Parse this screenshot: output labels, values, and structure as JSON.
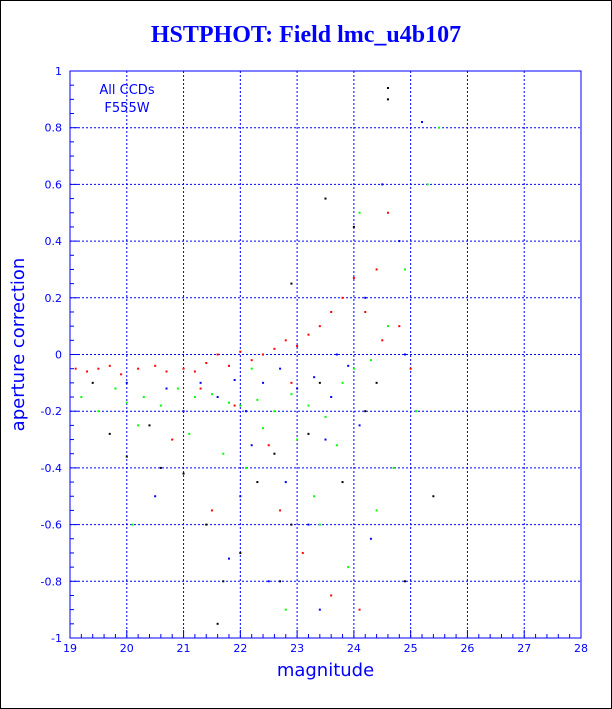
{
  "chart_data": {
    "type": "scatter",
    "title": "HSTPHOT: Field lmc_u4b107",
    "xlabel": "magnitude",
    "ylabel": "aperture correction",
    "xlim": [
      19,
      28
    ],
    "ylim": [
      -1,
      1
    ],
    "xticks": [
      "19",
      "20",
      "21",
      "22",
      "23",
      "24",
      "25",
      "26",
      "27",
      "28"
    ],
    "yticks": [
      "-1",
      "-0.8",
      "-0.6",
      "-0.4",
      "-0.2",
      "0",
      "0.2",
      "0.4",
      "0.6",
      "0.8",
      "1"
    ],
    "grid": true,
    "annotations": [
      "All CCDs",
      "F555W"
    ],
    "colors": {
      "axis": "#0000ff",
      "red": "#ff0000",
      "green": "#00ff00",
      "blue": "#0000ff",
      "black": "#000000"
    },
    "series": [
      {
        "color": "red",
        "points": [
          [
            19.1,
            -0.05
          ],
          [
            19.3,
            -0.06
          ],
          [
            19.5,
            -0.05
          ],
          [
            19.7,
            -0.04
          ],
          [
            19.9,
            -0.07
          ],
          [
            20.2,
            -0.05
          ],
          [
            20.5,
            -0.04
          ],
          [
            20.7,
            -0.06
          ],
          [
            21.0,
            -0.05
          ],
          [
            21.2,
            -0.06
          ],
          [
            21.4,
            -0.03
          ],
          [
            21.6,
            0.0
          ],
          [
            21.8,
            -0.04
          ],
          [
            22.0,
            0.01
          ],
          [
            22.2,
            -0.02
          ],
          [
            22.4,
            0.0
          ],
          [
            22.6,
            0.02
          ],
          [
            22.8,
            0.05
          ],
          [
            23.0,
            0.03
          ],
          [
            23.2,
            0.07
          ],
          [
            23.4,
            0.1
          ],
          [
            23.6,
            0.15
          ],
          [
            23.8,
            0.2
          ],
          [
            24.0,
            0.27
          ],
          [
            24.2,
            0.15
          ],
          [
            24.4,
            0.3
          ],
          [
            24.6,
            0.5
          ],
          [
            24.8,
            0.1
          ],
          [
            25.0,
            -0.05
          ],
          [
            21.3,
            -0.12
          ],
          [
            21.9,
            -0.18
          ],
          [
            22.5,
            -0.32
          ],
          [
            22.7,
            -0.55
          ],
          [
            23.1,
            -0.7
          ],
          [
            23.6,
            -0.85
          ],
          [
            24.1,
            -0.9
          ],
          [
            22.9,
            -0.1
          ],
          [
            21.5,
            -0.55
          ],
          [
            20.8,
            -0.3
          ],
          [
            24.5,
            0.05
          ]
        ]
      },
      {
        "color": "green",
        "points": [
          [
            19.2,
            -0.15
          ],
          [
            19.5,
            -0.2
          ],
          [
            19.8,
            -0.12
          ],
          [
            20.0,
            -0.17
          ],
          [
            20.3,
            -0.15
          ],
          [
            20.6,
            -0.18
          ],
          [
            20.9,
            -0.12
          ],
          [
            21.2,
            -0.15
          ],
          [
            21.5,
            -0.14
          ],
          [
            21.8,
            -0.17
          ],
          [
            22.0,
            -0.18
          ],
          [
            22.3,
            -0.16
          ],
          [
            22.6,
            -0.2
          ],
          [
            22.9,
            -0.14
          ],
          [
            23.2,
            -0.18
          ],
          [
            23.5,
            -0.22
          ],
          [
            23.8,
            -0.1
          ],
          [
            24.0,
            -0.05
          ],
          [
            24.3,
            -0.02
          ],
          [
            24.6,
            0.1
          ],
          [
            24.9,
            0.3
          ],
          [
            25.3,
            0.6
          ],
          [
            25.5,
            0.8
          ],
          [
            24.1,
            0.5
          ],
          [
            23.0,
            -0.3
          ],
          [
            22.1,
            -0.4
          ],
          [
            21.7,
            -0.35
          ],
          [
            20.2,
            -0.25
          ],
          [
            23.4,
            -0.6
          ],
          [
            24.7,
            -0.4
          ],
          [
            22.8,
            -0.9
          ],
          [
            23.3,
            -0.5
          ],
          [
            21.1,
            -0.28
          ],
          [
            22.4,
            -0.26
          ],
          [
            23.7,
            -0.32
          ],
          [
            25.1,
            -0.2
          ],
          [
            24.4,
            -0.55
          ],
          [
            20.1,
            -0.6
          ],
          [
            23.9,
            -0.75
          ],
          [
            22.2,
            -0.05
          ]
        ]
      },
      {
        "color": "blue",
        "points": [
          [
            20.0,
            -0.1
          ],
          [
            20.7,
            -0.12
          ],
          [
            21.3,
            -0.1
          ],
          [
            21.6,
            -0.15
          ],
          [
            21.9,
            -0.09
          ],
          [
            22.1,
            -0.2
          ],
          [
            22.4,
            -0.1
          ],
          [
            22.7,
            -0.05
          ],
          [
            23.0,
            -0.12
          ],
          [
            23.3,
            -0.08
          ],
          [
            23.6,
            -0.15
          ],
          [
            23.9,
            -0.04
          ],
          [
            24.2,
            0.2
          ],
          [
            24.5,
            0.6
          ],
          [
            24.8,
            0.4
          ],
          [
            25.2,
            0.82
          ],
          [
            22.2,
            -0.32
          ],
          [
            22.8,
            -0.45
          ],
          [
            23.2,
            -0.6
          ],
          [
            21.8,
            -0.72
          ],
          [
            23.5,
            -0.3
          ],
          [
            24.1,
            -0.25
          ],
          [
            22.5,
            -0.8
          ],
          [
            21.0,
            -0.2
          ],
          [
            24.9,
            0.0
          ],
          [
            20.5,
            -0.5
          ],
          [
            23.7,
            0.0
          ],
          [
            22.0,
            -0.5
          ],
          [
            24.3,
            -0.65
          ],
          [
            23.4,
            -0.9
          ]
        ]
      },
      {
        "color": "black",
        "points": [
          [
            19.4,
            -0.1
          ],
          [
            19.7,
            -0.28
          ],
          [
            20.0,
            -0.36
          ],
          [
            20.4,
            -0.25
          ],
          [
            21.0,
            -0.42
          ],
          [
            21.4,
            -0.6
          ],
          [
            21.7,
            -0.8
          ],
          [
            22.0,
            -0.7
          ],
          [
            22.3,
            -0.45
          ],
          [
            22.6,
            -0.35
          ],
          [
            22.9,
            -0.6
          ],
          [
            23.2,
            -0.28
          ],
          [
            23.4,
            -0.1
          ],
          [
            23.8,
            -0.45
          ],
          [
            24.2,
            -0.2
          ],
          [
            24.4,
            -0.1
          ],
          [
            24.6,
            0.9
          ],
          [
            24.9,
            -0.8
          ],
          [
            25.4,
            -0.5
          ],
          [
            22.9,
            0.25
          ],
          [
            23.5,
            0.55
          ],
          [
            24.0,
            0.45
          ],
          [
            21.6,
            -0.95
          ],
          [
            22.7,
            -0.8
          ],
          [
            20.6,
            -0.4
          ],
          [
            24.6,
            0.94
          ]
        ]
      }
    ]
  }
}
